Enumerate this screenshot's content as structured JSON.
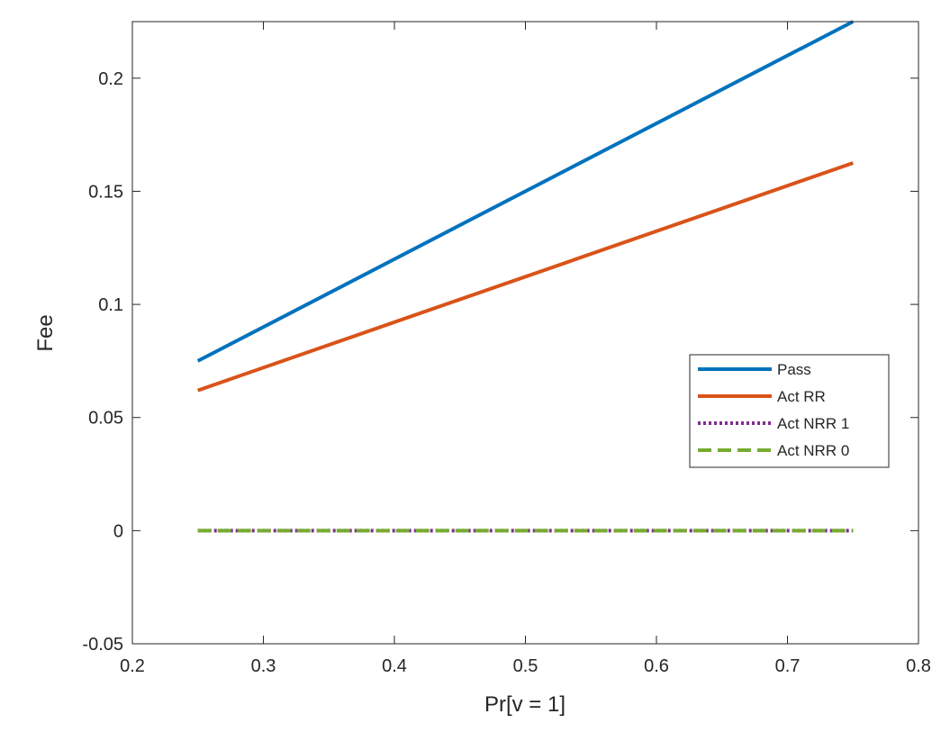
{
  "chart_data": {
    "type": "line",
    "xlabel": "Pr[v = 1]",
    "ylabel": "Fee",
    "xlim": [
      0.2,
      0.8
    ],
    "ylim": [
      -0.05,
      0.225
    ],
    "xticks": [
      0.2,
      0.3,
      0.4,
      0.5,
      0.6,
      0.7,
      0.8
    ],
    "xtick_labels": [
      "0.2",
      "0.3",
      "0.4",
      "0.5",
      "0.6",
      "0.7",
      "0.8"
    ],
    "yticks": [
      -0.05,
      0,
      0.05,
      0.1,
      0.15,
      0.2
    ],
    "ytick_labels": [
      "-0.05",
      "0",
      "0.05",
      "0.1",
      "0.15",
      "0.2"
    ],
    "grid": false,
    "box": true,
    "legend_position": "right",
    "series": [
      {
        "name": "Pass",
        "color": "#0072BD",
        "style": "solid",
        "x": [
          0.25,
          0.75
        ],
        "y": [
          0.075,
          0.225
        ]
      },
      {
        "name": "Act RR",
        "color": "#D95319",
        "style": "solid",
        "x": [
          0.25,
          0.75
        ],
        "y": [
          0.062,
          0.1625
        ]
      },
      {
        "name": "Act NRR 1",
        "color": "#7E2F8E",
        "style": "dotted",
        "x": [
          0.25,
          0.75
        ],
        "y": [
          0,
          0
        ]
      },
      {
        "name": "Act NRR 0",
        "color": "#77AC30",
        "style": "dashed",
        "x": [
          0.25,
          0.75
        ],
        "y": [
          0,
          0
        ]
      }
    ]
  }
}
